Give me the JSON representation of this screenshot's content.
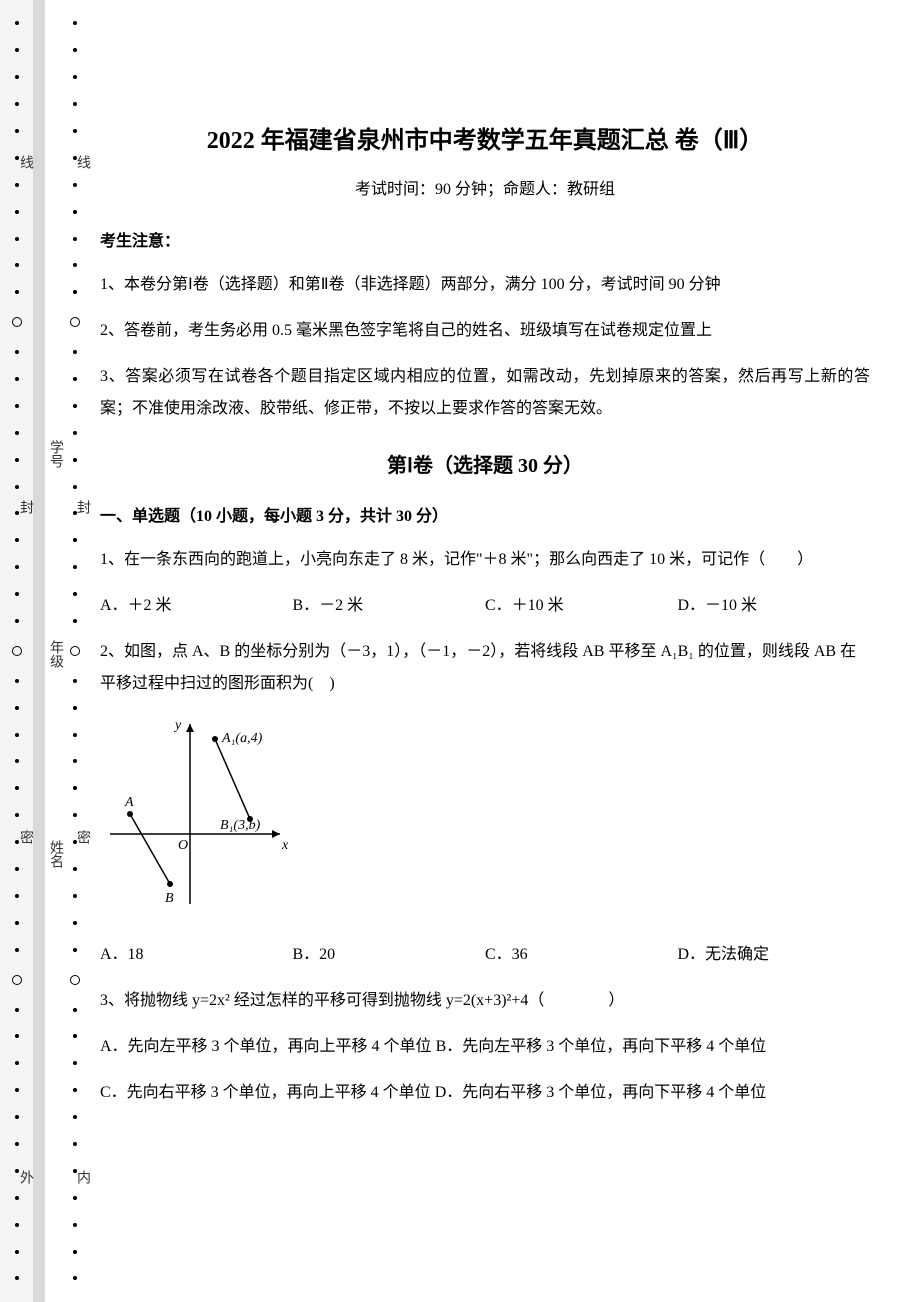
{
  "margin": {
    "outer_labels": [
      "线",
      "封",
      "密",
      "外"
    ],
    "inner_labels": [
      "线",
      "封",
      "密",
      "内"
    ],
    "field_labels": [
      "学号",
      "年级",
      "姓名"
    ]
  },
  "header": {
    "title": "2022 年福建省泉州市中考数学五年真题汇总 卷（Ⅲ）",
    "subtitle": "考试时间：90 分钟；命题人：教研组"
  },
  "notice": {
    "header": "考生注意：",
    "items": [
      "1、本卷分第Ⅰ卷（选择题）和第Ⅱ卷（非选择题）两部分，满分 100 分，考试时间 90 分钟",
      "2、答卷前，考生务必用 0.5 毫米黑色签字笔将自己的姓名、班级填写在试卷规定位置上",
      "3、答案必须写在试卷各个题目指定区域内相应的位置，如需改动，先划掉原来的答案，然后再写上新的答案；不准使用涂改液、胶带纸、修正带，不按以上要求作答的答案无效。"
    ]
  },
  "section1": {
    "title": "第Ⅰ卷（选择题  30 分）",
    "header": "一、单选题（10 小题，每小题 3 分，共计 30 分）"
  },
  "q1": {
    "text": "1、在一条东西向的跑道上，小亮向东走了 8 米，记作\"＋8 米\"；那么向西走了 10 米，可记作（　　）",
    "optA": "A．＋2 米",
    "optB": "B．－2 米",
    "optC": "C．＋10 米",
    "optD": "D．－10 米"
  },
  "q2": {
    "text": "2、如图，点 A、B 的坐标分别为（－3，1），（－1，－2），若将线段 AB 平移至 A₁B₁ 的位置，则线段 AB 在平移过程中扫过的图形面积为(　)",
    "optA": "A．18",
    "optB": "B．20",
    "optC": "C．36",
    "optD": "D．无法确定",
    "figure": {
      "points": {
        "A": {
          "x": -3,
          "y": 1,
          "label": "A"
        },
        "B": {
          "x": -1,
          "y": -2,
          "label": "B"
        },
        "A1": {
          "label": "A₁(a,4)"
        },
        "B1": {
          "label": "B₁(3,b)"
        },
        "O": {
          "label": "O"
        }
      },
      "axes": {
        "x_label": "x",
        "y_label": "y"
      },
      "colors": {
        "line": "#000000",
        "axis": "#000000",
        "point_fill": "#000000"
      }
    }
  },
  "q3": {
    "text": "3、将抛物线 y=2x² 经过怎样的平移可得到抛物线 y=2(x+3)²+4（　　　　）",
    "optA": "A．先向左平移 3 个单位，再向上平移 4 个单位",
    "optB": "B．先向左平移 3 个单位，再向下平移 4 个单位",
    "optC": "C．先向右平移 3 个单位，再向上平移 4 个单位",
    "optD": "D．先向右平移 3 个单位，再向下平移 4 个单位"
  }
}
